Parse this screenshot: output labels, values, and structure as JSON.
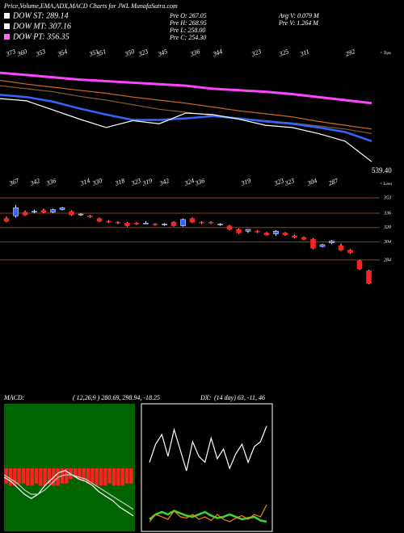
{
  "header": {
    "title": "Price,Volume,EMA,ADX,MACD Charts for JWL MunafaSutra.com",
    "dow": [
      {
        "label": "DOW ST: 289.14",
        "color": "#ffffff"
      },
      {
        "label": "DOW MT: 307.16",
        "color": "#ffffff"
      },
      {
        "label": "DOW PT: 356.35",
        "color": "#ff66ff"
      }
    ],
    "pre": [
      "Pre  O: 267.05",
      "Pre  H: 268.95",
      "Pre  L: 258.00",
      "Pre  C: 254.30"
    ],
    "volume": [
      "Avg  V: 0.079  M",
      "Pre  V: 1.264  M"
    ]
  },
  "chart_data": [
    {
      "type": "ema",
      "ylim": [
        250,
        420
      ],
      "tops": [
        373,
        360,
        353,
        354,
        351,
        351,
        350,
        323,
        345,
        336,
        344,
        323,
        325,
        311,
        292
      ],
      "tops_label": "< Tops",
      "lows": [
        367,
        342,
        336,
        314,
        330,
        318,
        323,
        319,
        342,
        324,
        336,
        319,
        323,
        323,
        304,
        287
      ],
      "lows_label": "< Lows",
      "last_label": "539.40",
      "series": [
        {
          "color": "#ff44ff",
          "values": [
            388,
            385,
            382,
            379,
            377,
            375,
            373,
            371,
            367,
            365,
            363,
            360,
            356,
            352,
            348
          ]
        },
        {
          "color": "#d2691e",
          "values": [
            378,
            373,
            369,
            365,
            361,
            356,
            352,
            348,
            343,
            338,
            334,
            330,
            324,
            319,
            314
          ]
        },
        {
          "color": "#8b5a2b",
          "values": [
            371,
            367,
            363,
            357,
            352,
            346,
            340,
            336,
            332,
            328,
            325,
            322,
            318,
            314,
            308
          ]
        },
        {
          "color": "#3366ff",
          "values": [
            359,
            356,
            350,
            341,
            333,
            326,
            326,
            328,
            331,
            328,
            324,
            321,
            316,
            310,
            298
          ]
        },
        {
          "color": "#ffffff",
          "values": [
            354,
            351,
            339,
            327,
            316,
            325,
            321,
            335,
            333,
            327,
            319,
            316,
            308,
            298,
            271
          ]
        }
      ]
    },
    {
      "type": "candlestick",
      "ylim": [
        257,
        357.5
      ],
      "yticks": [
        353,
        336,
        320,
        304,
        284
      ],
      "grid_color": "#8b4513",
      "up_color": "#3366ff",
      "down_color": "#ff2222",
      "open": [
        330,
        333,
        337,
        338,
        339,
        337,
        340,
        338,
        334,
        333,
        330,
        327,
        326,
        325,
        325,
        325,
        324,
        323,
        326,
        322,
        330,
        326,
        326,
        324,
        322,
        318,
        316,
        316,
        314,
        313,
        314,
        311,
        309,
        307,
        299,
        303,
        300,
        295,
        283,
        272
      ],
      "high": [
        332,
        345,
        339,
        340,
        341,
        341,
        343,
        339,
        336,
        334,
        331,
        328,
        327,
        326,
        326,
        327,
        325,
        325,
        327,
        330,
        331,
        327,
        327,
        325,
        323,
        319,
        318,
        317,
        315,
        317,
        315,
        312,
        310,
        308,
        302,
        306,
        302,
        296,
        284,
        273
      ],
      "low": [
        326,
        331,
        333,
        336,
        336,
        336,
        339,
        333,
        333,
        331,
        326,
        325,
        324,
        321,
        323,
        324,
        322,
        322,
        321,
        321,
        325,
        324,
        324,
        322,
        317,
        313,
        314,
        314,
        311,
        311,
        311,
        308,
        306,
        296,
        298,
        302,
        294,
        291,
        273,
        257
      ],
      "close": [
        327,
        342,
        334,
        338,
        337,
        340,
        342,
        334,
        335,
        332,
        327,
        326,
        325,
        322,
        324,
        325,
        323,
        324,
        322,
        329,
        326,
        325,
        325,
        324,
        318,
        314,
        318,
        315,
        312,
        316,
        312,
        309,
        307,
        297,
        301,
        305,
        295,
        292,
        274,
        258
      ]
    },
    {
      "type": "macd",
      "title": "MACD:",
      "params": "( 12,26,9 ) 280.69, 298.94, -18.25",
      "ylim": [
        -30,
        30
      ],
      "hist_color": "#ff2222",
      "histogram": [
        -7,
        -8,
        -8,
        -7,
        -7,
        -8,
        -8,
        -7,
        -8,
        -8,
        -7,
        -8,
        -8,
        -7,
        -7,
        -5,
        -4,
        -5,
        -6,
        -7,
        -7,
        -8,
        -8,
        -8,
        -7,
        -8,
        -8,
        -8,
        -7,
        -7
      ],
      "series": [
        {
          "color": "#ffffff",
          "values": [
            -4,
            -6,
            -9,
            -12,
            -14,
            -12,
            -8,
            -5,
            -2,
            -1,
            -3,
            -5,
            -6,
            -8,
            -11,
            -13,
            -15,
            -18,
            -20,
            -22
          ]
        },
        {
          "color": "#cccccc",
          "values": [
            -3,
            -5,
            -7,
            -10,
            -12,
            -12,
            -10,
            -7,
            -4,
            -3,
            -3,
            -4,
            -5,
            -7,
            -9,
            -11,
            -13,
            -15,
            -17,
            -19
          ]
        }
      ]
    },
    {
      "type": "adx",
      "title": "DX:",
      "params": "(14 day) 63, -11, 46",
      "ylim": [
        0,
        100
      ],
      "series": [
        {
          "color": "#ffffff",
          "values": [
            55,
            70,
            78,
            60,
            82,
            65,
            48,
            72,
            60,
            55,
            75,
            58,
            66,
            50,
            62,
            70,
            55,
            68,
            72,
            85
          ]
        },
        {
          "color": "#33dd33",
          "values": [
            8,
            12,
            14,
            12,
            15,
            13,
            11,
            10,
            12,
            14,
            11,
            9,
            10,
            12,
            10,
            8,
            9,
            10,
            7,
            6
          ]
        },
        {
          "color": "#ff8800",
          "values": [
            6,
            12,
            10,
            8,
            15,
            10,
            9,
            12,
            8,
            10,
            7,
            12,
            8,
            6,
            9,
            11,
            8,
            12,
            10,
            20
          ]
        }
      ]
    }
  ]
}
